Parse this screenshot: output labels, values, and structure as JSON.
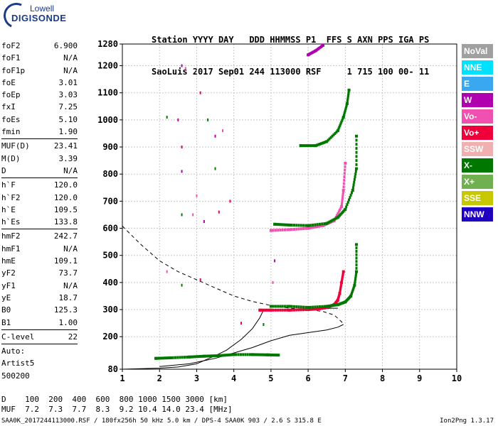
{
  "logo": {
    "line1": "Lowell",
    "line2": "DIGISONDE"
  },
  "header": {
    "labels": [
      "Station",
      "YYYY",
      "DAY",
      "DDD",
      "HHMMSS",
      "P1",
      "FFS",
      "S",
      "AXN",
      "PPS",
      "IGA",
      "PS"
    ],
    "values": [
      "SaoLuis",
      "2017",
      "Sep01",
      "244",
      "113000",
      "RSF",
      "1",
      "715",
      "100",
      "00-",
      "11"
    ]
  },
  "params": {
    "group1": [
      {
        "label": "foF2",
        "value": "6.900"
      },
      {
        "label": "foF1",
        "value": "N/A"
      },
      {
        "label": "foF1p",
        "value": "N/A"
      },
      {
        "label": "foE",
        "value": "3.01"
      },
      {
        "label": "foEp",
        "value": "3.03"
      },
      {
        "label": "fxI",
        "value": "7.25"
      },
      {
        "label": "foEs",
        "value": "5.10"
      },
      {
        "label": "fmin",
        "value": "1.90"
      }
    ],
    "group2": [
      {
        "label": "MUF(D)",
        "value": "23.41"
      },
      {
        "label": "M(D)",
        "value": "3.39"
      },
      {
        "label": "D",
        "value": "N/A"
      }
    ],
    "group3": [
      {
        "label": "h`F",
        "value": "120.0"
      },
      {
        "label": "h`F2",
        "value": "120.0"
      },
      {
        "label": "h`E",
        "value": "109.5"
      },
      {
        "label": "h`Es",
        "value": "133.8"
      }
    ],
    "group4": [
      {
        "label": "hmF2",
        "value": "242.7"
      },
      {
        "label": "hmF1",
        "value": "N/A"
      },
      {
        "label": "hmE",
        "value": "109.1"
      },
      {
        "label": "yF2",
        "value": "73.7"
      },
      {
        "label": "yF1",
        "value": "N/A"
      },
      {
        "label": "yE",
        "value": "18.7"
      },
      {
        "label": "B0",
        "value": "125.3"
      },
      {
        "label": "B1",
        "value": "1.00"
      }
    ],
    "group5": [
      {
        "label": "C-level",
        "value": "22"
      }
    ],
    "auto": [
      "Auto:",
      "Artist5",
      "500200"
    ]
  },
  "legend": [
    {
      "label": "NoVal",
      "color": "#a0a0a0"
    },
    {
      "label": "NNE",
      "color": "#00e0ff"
    },
    {
      "label": "E",
      "color": "#3aa8f0"
    },
    {
      "label": "W",
      "color": "#b000b0"
    },
    {
      "label": "Vo-",
      "color": "#f050b0"
    },
    {
      "label": "Vo+",
      "color": "#f0003a"
    },
    {
      "label": "SSW",
      "color": "#f0b0b0"
    },
    {
      "label": "X-",
      "color": "#007800"
    },
    {
      "label": "X+",
      "color": "#70b050"
    },
    {
      "label": "SSE",
      "color": "#c8c800"
    },
    {
      "label": "NNW",
      "color": "#2000c0"
    }
  ],
  "footer": {
    "d_label": "D",
    "d_values": [
      "100",
      "200",
      "400",
      "600",
      "800",
      "1000",
      "1500",
      "3000"
    ],
    "d_unit": "[km]",
    "muf_label": "MUF",
    "muf_values": [
      "7.2",
      "7.3",
      "7.7",
      "8.3",
      "9.2",
      "10.4",
      "14.0",
      "23.4"
    ],
    "muf_unit": "[MHz]",
    "info": "SAA0K_2017244113000.RSF / 180fx256h 50 kHz 5.0 km / DPS-4 SAA0K 903 / 2.6 S 315.8 E",
    "version": "Ion2Png 1.3.17"
  },
  "chart_data": {
    "type": "scatter",
    "xlim": [
      1,
      10
    ],
    "ylim": [
      80,
      1280
    ],
    "x_ticks": [
      1,
      2,
      3,
      4,
      5,
      6,
      7,
      8,
      9,
      10
    ],
    "y_ticks": [
      80,
      200,
      300,
      400,
      500,
      600,
      700,
      800,
      900,
      1000,
      1100,
      1200,
      1280
    ],
    "grid": true,
    "profile_solid": [
      [
        1.0,
        80
      ],
      [
        1.5,
        82
      ],
      [
        2.0,
        84
      ],
      [
        2.5,
        88
      ],
      [
        2.8,
        95
      ],
      [
        3.0,
        100
      ],
      [
        3.2,
        112
      ],
      [
        3.5,
        130
      ],
      [
        3.8,
        150
      ],
      [
        4.2,
        190
      ],
      [
        4.5,
        230
      ],
      [
        4.7,
        270
      ],
      [
        4.8,
        298
      ],
      [
        5.0,
        298
      ],
      [
        5.3,
        298
      ],
      [
        5.6,
        300
      ],
      [
        6.0,
        300
      ],
      [
        6.3,
        302
      ],
      [
        6.6,
        305
      ],
      [
        6.8,
        305
      ]
    ],
    "profile_lower": [
      [
        2.0,
        90
      ],
      [
        2.8,
        100
      ],
      [
        3.5,
        120
      ],
      [
        4.0,
        140
      ],
      [
        4.5,
        160
      ],
      [
        5.0,
        185
      ],
      [
        5.5,
        205
      ],
      [
        6.0,
        215
      ],
      [
        6.5,
        225
      ],
      [
        6.8,
        235
      ],
      [
        6.95,
        245
      ]
    ],
    "profile_dashed": [
      [
        1.0,
        608
      ],
      [
        1.5,
        540
      ],
      [
        2.0,
        480
      ],
      [
        2.5,
        440
      ],
      [
        3.0,
        410
      ],
      [
        3.5,
        380
      ],
      [
        4.0,
        350
      ],
      [
        4.5,
        330
      ],
      [
        5.0,
        315
      ],
      [
        5.5,
        305
      ],
      [
        6.0,
        300
      ],
      [
        6.4,
        293
      ],
      [
        6.7,
        280
      ],
      [
        6.9,
        255
      ],
      [
        6.95,
        245
      ]
    ],
    "trace_o2": {
      "color": "#f0003a",
      "points": [
        [
          4.7,
          298
        ],
        [
          5.0,
          298
        ],
        [
          5.5,
          298
        ],
        [
          6.0,
          300
        ],
        [
          6.3,
          303
        ],
        [
          6.5,
          308
        ],
        [
          6.7,
          318
        ],
        [
          6.8,
          335
        ],
        [
          6.85,
          360
        ],
        [
          6.9,
          400
        ],
        [
          6.95,
          440
        ]
      ]
    },
    "trace_x2": {
      "color": "#007800",
      "points": [
        [
          5.0,
          312
        ],
        [
          5.5,
          312
        ],
        [
          6.0,
          308
        ],
        [
          6.5,
          312
        ],
        [
          6.8,
          318
        ],
        [
          7.0,
          328
        ],
        [
          7.15,
          350
        ],
        [
          7.25,
          390
        ],
        [
          7.3,
          440
        ],
        [
          7.3,
          540
        ]
      ]
    },
    "trace_o3": {
      "color": "#f050b0",
      "points": [
        [
          5.0,
          592
        ],
        [
          5.5,
          595
        ],
        [
          6.0,
          600
        ],
        [
          6.4,
          610
        ],
        [
          6.7,
          628
        ],
        [
          6.9,
          680
        ],
        [
          6.95,
          740
        ],
        [
          7.0,
          840
        ]
      ]
    },
    "trace_x3": {
      "color": "#007800",
      "points": [
        [
          5.1,
          615
        ],
        [
          5.5,
          612
        ],
        [
          6.0,
          610
        ],
        [
          6.5,
          618
        ],
        [
          6.8,
          640
        ],
        [
          7.0,
          670
        ],
        [
          7.2,
          740
        ],
        [
          7.3,
          820
        ],
        [
          7.3,
          940
        ]
      ]
    },
    "trace_x4": {
      "color": "#007800",
      "points": [
        [
          5.8,
          905
        ],
        [
          6.2,
          905
        ],
        [
          6.5,
          920
        ],
        [
          6.8,
          960
        ],
        [
          6.95,
          1010
        ],
        [
          7.05,
          1060
        ],
        [
          7.1,
          1110
        ]
      ]
    },
    "trace_top": {
      "color": "#b000b0",
      "points": [
        [
          6.0,
          1240
        ],
        [
          6.2,
          1255
        ],
        [
          6.4,
          1275
        ]
      ]
    },
    "es_trace": {
      "color": "#007800",
      "points": [
        [
          1.9,
          120
        ],
        [
          2.3,
          122
        ],
        [
          2.8,
          125
        ],
        [
          3.2,
          128
        ],
        [
          3.6,
          130
        ],
        [
          4.0,
          134
        ],
        [
          4.5,
          134
        ],
        [
          4.9,
          133
        ],
        [
          5.2,
          132
        ]
      ]
    },
    "scatter": [
      [
        2.6,
        1200
      ],
      [
        2.7,
        1190
      ],
      [
        3.1,
        1100
      ],
      [
        3.3,
        1000
      ],
      [
        3.5,
        940
      ],
      [
        3.7,
        960
      ],
      [
        2.6,
        900
      ],
      [
        3.5,
        820
      ],
      [
        2.6,
        810
      ],
      [
        3.0,
        720
      ],
      [
        3.9,
        700
      ],
      [
        2.6,
        650
      ],
      [
        3.2,
        625
      ],
      [
        2.9,
        650
      ],
      [
        3.6,
        660
      ],
      [
        2.2,
        1010
      ],
      [
        2.5,
        1000
      ],
      [
        2.2,
        440
      ],
      [
        3.1,
        410
      ],
      [
        2.6,
        390
      ],
      [
        5.1,
        480
      ],
      [
        5.05,
        400
      ],
      [
        4.2,
        250
      ],
      [
        4.8,
        245
      ]
    ]
  }
}
